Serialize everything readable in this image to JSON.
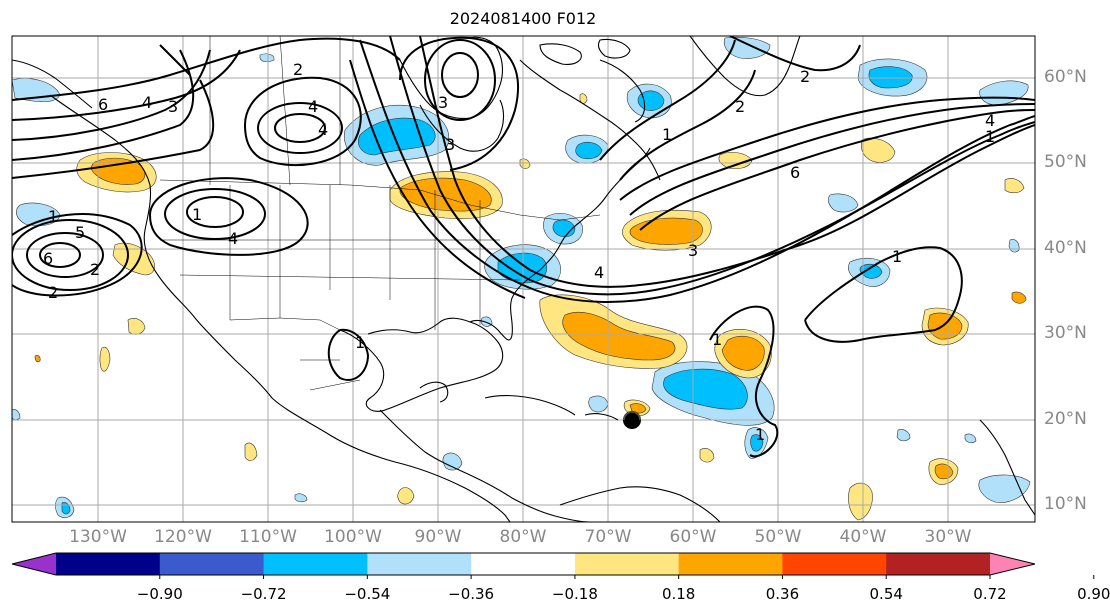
{
  "title": "2024081400 F012",
  "lat_labels": [
    "60°N",
    "50°N",
    "40°N",
    "30°N",
    "20°N",
    "10°N"
  ],
  "lon_labels": [
    "130°W",
    "120°W",
    "110°W",
    "100°W",
    "90°W",
    "80°W",
    "70°W",
    "60°W",
    "50°W",
    "40°W",
    "30°W"
  ],
  "colorbar": {
    "ticks": [
      "−0.90",
      "−0.72",
      "−0.54",
      "−0.36",
      "−0.18",
      "0.18",
      "0.36",
      "0.54",
      "0.72",
      "0.90"
    ],
    "colors": [
      "#9932cc",
      "#00008b",
      "#3b5bcc",
      "#00bfff",
      "#b0e0fa",
      "#ffffff",
      "#ffe680",
      "#ffa500",
      "#ff4500",
      "#b22222",
      "#ff82b4"
    ]
  },
  "contour_labels": [
    "6",
    "2",
    "4",
    "3",
    "2",
    "4",
    "4",
    "3",
    "3",
    "2",
    "1",
    "6",
    "2",
    "1",
    "3",
    "4",
    "6",
    "4",
    "2",
    "5",
    "1",
    "4",
    "1",
    "1",
    "1",
    "1",
    "1"
  ],
  "marker": "storm-center"
}
